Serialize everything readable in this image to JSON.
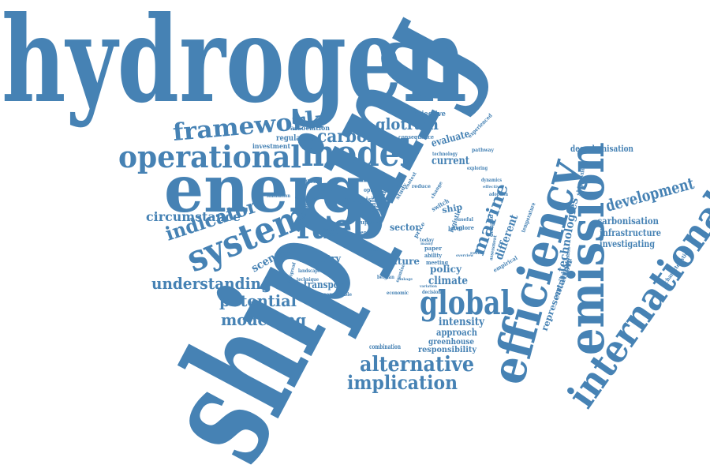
{
  "color": "#4682b4",
  "words": [
    "hydrogen",
    "shipping",
    "energy",
    "efficiency",
    "emission",
    "international",
    "model",
    "operational",
    "system",
    "fuel",
    "global",
    "framework",
    "alternative",
    "implication",
    "development",
    "marine",
    "potential",
    "modelling",
    "understanding",
    "indicator",
    "circumstance",
    "carbon",
    "glotram",
    "technologies",
    "decarbonisation",
    "carbonisation",
    "infrastructure",
    "investigating",
    "representation",
    "contribution",
    "different",
    "scenario",
    "industry",
    "transport",
    "future",
    "policy",
    "climate",
    "intensity",
    "approach",
    "greenhouse",
    "responsibility",
    "combination",
    "sector",
    "current",
    "evaluate",
    "objective",
    "regulation",
    "association",
    "investment",
    "consequence",
    "experienced",
    "technology",
    "exploring",
    "dynamics",
    "adoption",
    "effective",
    "temperature",
    "pathway",
    "hypothesis",
    "evidence",
    "dangerous",
    "simulation",
    "analysis",
    "option",
    "uptake",
    "study",
    "context",
    "reduce",
    "change",
    "switch",
    "ship",
    "logistic",
    "level",
    "explore",
    "useful",
    "demand",
    "empirical",
    "assessment",
    "research",
    "trend",
    "paper",
    "ability",
    "meeting",
    "belgian",
    "examine",
    "landscape",
    "technique",
    "compatible",
    "economic",
    "decision",
    "widespread",
    "shipowner",
    "characteristic",
    "possible",
    "price",
    "today",
    "indice",
    "despite",
    "combustion",
    "overview",
    "result",
    "linkage",
    "bottom",
    "variation",
    "many",
    "tails",
    "shipping"
  ]
}
